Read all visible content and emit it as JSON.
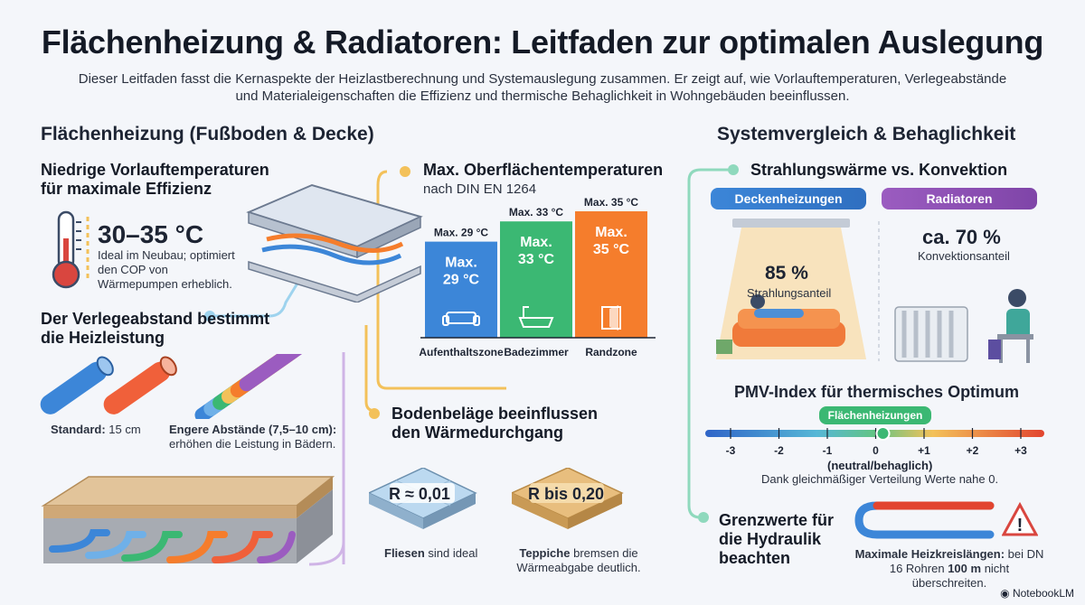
{
  "title": "Flächenheizung & Radiatoren: Leitfaden zur optimalen Auslegung",
  "intro": "Dieser Leitfaden fasst die Kernaspekte der Heizlastberechnung und Systemauslegung zusammen. Er zeigt auf, wie Vorlauftemperaturen, Verlegeabstände und Materialeigenschaften die Effizienz und thermische Behaglichkeit in Wohngebäuden beeinflussen.",
  "left": {
    "heading": "Flächenheizung (Fußboden & Decke)",
    "vorlauf": {
      "title": "Niedrige Vorlauftemperaturen für maximale Effizienz",
      "value": "30–35 °C",
      "desc": "Ideal im Neubau; optimiert den COP von Wärmepumpen erheblich."
    },
    "verlege": {
      "title": "Der Verlegeabstand bestimmt die Heizleistung",
      "standard_label": "Standard:",
      "standard_value": "15 cm",
      "engere_label": "Engere Abstände (7,5–10 cm):",
      "engere_text": "erhöhen die Leistung in Bädern."
    }
  },
  "middle": {
    "oberflaeche": {
      "title": "Max. Oberflächentemperaturen",
      "subtitle": "nach DIN EN 1264"
    },
    "bars": [
      {
        "top_label": "Max. 29 °C",
        "inner": "Max. 29 °C",
        "zone": "Aufenthaltszone",
        "value": 29,
        "color": "#3c86d8",
        "icon": "sofa-icon"
      },
      {
        "top_label": "Max. 33 °C",
        "inner": "Max. 33 °C",
        "zone": "Badezimmer",
        "value": 33,
        "color": "#3bb873",
        "icon": "bathtub-icon"
      },
      {
        "top_label": "Max. 35 °C",
        "inner": "Max. 35 °C",
        "zone": "Randzone",
        "value": 35,
        "color": "#f57d2c",
        "icon": "door-icon"
      }
    ],
    "bodenbelag": {
      "title": "Bodenbeläge beeinflussen den Wärmedurchgang",
      "fliesen_r": "R ≈ 0,01",
      "teppich_r": "R bis 0,20",
      "fliesen_label": "Fliesen",
      "fliesen_text": "sind ideal",
      "teppich_label": "Teppiche",
      "teppich_text": "bremsen die Wärmeabgabe deutlich."
    }
  },
  "right": {
    "heading": "Systemvergleich & Behaglichkeit",
    "strahlung_title": "Strahlungswärme vs. Konvektion",
    "tag_decke": "Deckenheizungen",
    "tag_radiator": "Radiatoren",
    "decke_value": "85 %",
    "decke_label": "Strahlungsanteil",
    "radiator_value": "ca. 70 %",
    "radiator_label": "Konvektionsanteil",
    "pmv": {
      "title": "PMV-Index für thermisches Optimum",
      "marker_label": "Flächenheizungen",
      "ticks": [
        "-3",
        "-2",
        "-1",
        "0",
        "+1",
        "+2",
        "+3"
      ],
      "marker_value": 0.15,
      "neutral": "(neutral/behaglich)",
      "note": "Dank gleichmäßiger Verteilung Werte nahe 0."
    },
    "grenz": {
      "title": "Grenzwerte für die Hydraulik beachten",
      "label": "Maximale Heizkreislängen:",
      "text_a": "bei DN 16 Rohren",
      "text_b": "100 m",
      "text_c": "nicht überschreiten."
    }
  },
  "brand": "NotebookLM",
  "colors": {
    "blue": "#3c86d8",
    "green": "#3bb873",
    "orange": "#f57d2c",
    "purple": "#9b5cc0",
    "yellow": "#f3c15a",
    "teal": "#5cc7a6"
  }
}
